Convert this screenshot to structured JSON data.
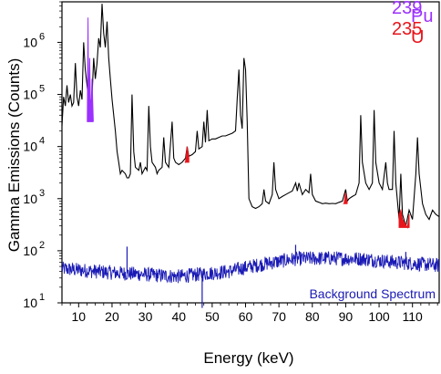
{
  "chart_data": {
    "type": "line",
    "xlabel": "Energy (keV)",
    "ylabel": "Gamma Emissions (Counts)",
    "xlim": [
      5,
      118
    ],
    "ylim": [
      10,
      6000000
    ],
    "yscale": "log",
    "x_ticks": [
      10,
      20,
      30,
      40,
      50,
      60,
      70,
      80,
      90,
      100,
      110
    ],
    "y_ticks": [
      {
        "base": "10",
        "exp": "1",
        "value": 10
      },
      {
        "base": "10",
        "exp": "2",
        "value": 100
      },
      {
        "base": "10",
        "exp": "3",
        "value": 1000
      },
      {
        "base": "10",
        "exp": "4",
        "value": 10000
      },
      {
        "base": "10",
        "exp": "5",
        "value": 100000
      },
      {
        "base": "10",
        "exp": "6",
        "value": 1000000
      }
    ],
    "grid": false,
    "legend": [
      {
        "mass": "239",
        "element": "Pu",
        "color": "#9B30FF"
      },
      {
        "mass": "235",
        "element": "U",
        "color": "#E8141B"
      }
    ],
    "annotation": {
      "text": "Background Spectrum",
      "color": "#1A1AB5"
    },
    "series": [
      {
        "color": "#000000",
        "points": [
          [
            5,
            25000
          ],
          [
            5.5,
            90000
          ],
          [
            6,
            60000
          ],
          [
            6.5,
            150000
          ],
          [
            7,
            70000
          ],
          [
            7.5,
            100000
          ],
          [
            8,
            60000
          ],
          [
            8.5,
            70000
          ],
          [
            9,
            400000
          ],
          [
            9.5,
            90000
          ],
          [
            10,
            60000
          ],
          [
            10.5,
            120000
          ],
          [
            11,
            80000
          ],
          [
            11.5,
            1000000
          ],
          [
            12,
            300000
          ],
          [
            12.5,
            150000
          ],
          [
            13,
            80000
          ],
          [
            13.5,
            60000
          ],
          [
            14,
            90000
          ],
          [
            14.5,
            500000
          ],
          [
            15,
            200000
          ],
          [
            15.5,
            400000
          ],
          [
            16,
            1200000
          ],
          [
            16.5,
            800000
          ],
          [
            17,
            5500000
          ],
          [
            17.5,
            1500000
          ],
          [
            18,
            800000
          ],
          [
            18.5,
            2500000
          ],
          [
            19,
            500000
          ],
          [
            19.5,
            200000
          ],
          [
            20,
            80000
          ],
          [
            20.5,
            40000
          ],
          [
            21,
            20000
          ],
          [
            21.5,
            8000
          ],
          [
            22,
            5000
          ],
          [
            22.5,
            3000
          ],
          [
            23,
            3500
          ],
          [
            24,
            3000
          ],
          [
            24.5,
            2500
          ],
          [
            25,
            2500
          ],
          [
            25.5,
            3000
          ],
          [
            26,
            100000
          ],
          [
            26.5,
            8000
          ],
          [
            27,
            4000
          ],
          [
            28,
            3500
          ],
          [
            28.5,
            5000
          ],
          [
            29,
            3000
          ],
          [
            30,
            4000
          ],
          [
            30.5,
            3500
          ],
          [
            31,
            60000
          ],
          [
            31.5,
            10000
          ],
          [
            32,
            5000
          ],
          [
            33,
            4000
          ],
          [
            33.5,
            3000
          ],
          [
            34,
            3500
          ],
          [
            35,
            4000
          ],
          [
            35.5,
            15000
          ],
          [
            36,
            5000
          ],
          [
            37,
            4000
          ],
          [
            38,
            30000
          ],
          [
            38.5,
            6000
          ],
          [
            39,
            5000
          ],
          [
            40,
            4500
          ],
          [
            41,
            5000
          ],
          [
            42,
            6000
          ],
          [
            42.5,
            10000
          ],
          [
            43,
            6500
          ],
          [
            44,
            7000
          ],
          [
            45,
            8000
          ],
          [
            45.5,
            20000
          ],
          [
            46,
            9000
          ],
          [
            47,
            10000
          ],
          [
            47.5,
            30000
          ],
          [
            48,
            12000
          ],
          [
            48.5,
            50000
          ],
          [
            49,
            13000
          ],
          [
            50,
            14000
          ],
          [
            51,
            14000
          ],
          [
            52,
            15000
          ],
          [
            53,
            16000
          ],
          [
            54,
            16000
          ],
          [
            55,
            17000
          ],
          [
            56,
            18000
          ],
          [
            57,
            20000
          ],
          [
            57.5,
            80000
          ],
          [
            58,
            300000
          ],
          [
            58.5,
            40000
          ],
          [
            59,
            22000
          ],
          [
            59.5,
            500000
          ],
          [
            60,
            300000
          ],
          [
            60.5,
            30000
          ],
          [
            61,
            1000
          ],
          [
            62,
            700
          ],
          [
            63,
            650
          ],
          [
            64,
            700
          ],
          [
            65,
            800
          ],
          [
            65.5,
            1500
          ],
          [
            66,
            900
          ],
          [
            67,
            800
          ],
          [
            68,
            1200
          ],
          [
            68.5,
            5000
          ],
          [
            69,
            1500
          ],
          [
            70,
            1000
          ],
          [
            71,
            1100
          ],
          [
            72,
            1200
          ],
          [
            73,
            1300
          ],
          [
            74,
            1400
          ],
          [
            75,
            2000
          ],
          [
            75.5,
            1400
          ],
          [
            76,
            2000
          ],
          [
            77,
            1200
          ],
          [
            78,
            1500
          ],
          [
            79,
            1300
          ],
          [
            79.5,
            3000
          ],
          [
            80,
            1200
          ],
          [
            81,
            900
          ],
          [
            82,
            850
          ],
          [
            83,
            800
          ],
          [
            84,
            820
          ],
          [
            85,
            800
          ],
          [
            86,
            810
          ],
          [
            87,
            800
          ],
          [
            88,
            850
          ],
          [
            89,
            900
          ],
          [
            90,
            1500
          ],
          [
            90.5,
            900
          ],
          [
            91,
            1000
          ],
          [
            92,
            1100
          ],
          [
            93,
            1200
          ],
          [
            94,
            2000
          ],
          [
            94.5,
            40000
          ],
          [
            95,
            5000
          ],
          [
            96,
            2000
          ],
          [
            97,
            1500
          ],
          [
            98,
            2000
          ],
          [
            98.5,
            50000
          ],
          [
            99,
            5000
          ],
          [
            100,
            2000
          ],
          [
            101,
            1500
          ],
          [
            102,
            5000
          ],
          [
            102.5,
            2000
          ],
          [
            103,
            1500
          ],
          [
            104,
            1500
          ],
          [
            104.5,
            20000
          ],
          [
            105,
            2000
          ],
          [
            106,
            400
          ],
          [
            106.5,
            3000
          ],
          [
            107,
            500
          ],
          [
            108,
            300
          ],
          [
            109,
            600
          ],
          [
            110,
            400
          ],
          [
            111,
            3000
          ],
          [
            111.5,
            15000
          ],
          [
            112,
            3000
          ],
          [
            113,
            800
          ],
          [
            114,
            500
          ],
          [
            115,
            400
          ],
          [
            116,
            600
          ],
          [
            117,
            500
          ],
          [
            118,
            450
          ]
        ]
      },
      {
        "color": "#9B30FF",
        "fill": true,
        "points": [
          [
            12.6,
            30000
          ],
          [
            12.8,
            3000000
          ],
          [
            13.0,
            30000
          ],
          [
            13.3,
            500000
          ],
          [
            13.6,
            30000
          ],
          [
            14.0,
            200000
          ],
          [
            14.4,
            30000
          ]
        ]
      },
      {
        "color": "#E8141B",
        "fill": true,
        "points": [
          [
            42.0,
            5000
          ],
          [
            42.5,
            10000
          ],
          [
            43.0,
            6000
          ],
          [
            89.5,
            800
          ],
          [
            90,
            1300
          ],
          [
            90.5,
            800
          ],
          [
            106,
            500
          ],
          [
            106.5,
            600
          ],
          [
            107,
            400
          ],
          [
            108.5,
            280
          ],
          [
            109,
            500
          ]
        ]
      },
      {
        "color": "#1A1AB5",
        "noise": true,
        "baseline": [
          [
            5,
            45
          ],
          [
            20,
            38
          ],
          [
            40,
            32
          ],
          [
            55,
            40
          ],
          [
            65,
            55
          ],
          [
            75,
            70
          ],
          [
            85,
            72
          ],
          [
            95,
            70
          ],
          [
            105,
            60
          ],
          [
            118,
            52
          ]
        ],
        "spikes": [
          [
            24.5,
            120
          ],
          [
            47,
            8
          ],
          [
            75,
            130
          ],
          [
            108,
            95
          ]
        ]
      }
    ]
  }
}
